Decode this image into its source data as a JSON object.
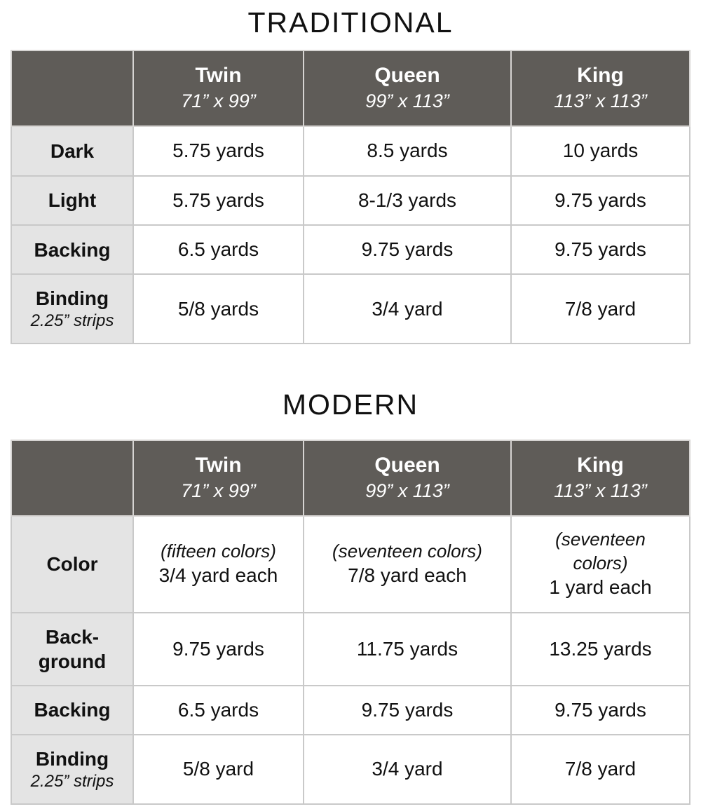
{
  "colors": {
    "header_bg": "#5f5c58",
    "header_text": "#ffffff",
    "label_bg": "#e4e4e4",
    "border": "#c9c9c9",
    "text": "#111111",
    "page_bg": "#ffffff"
  },
  "tables": [
    {
      "title": "TRADITIONAL",
      "columns": [
        {
          "name": "Twin",
          "size": "71” x 99”"
        },
        {
          "name": "Queen",
          "size": "99” x 113”"
        },
        {
          "name": "King",
          "size": "113” x 113”"
        }
      ],
      "rows": [
        {
          "label": "Dark",
          "sub": "",
          "cells": [
            {
              "value": "5.75 yards"
            },
            {
              "value": "8.5 yards"
            },
            {
              "value": "10 yards"
            }
          ]
        },
        {
          "label": "Light",
          "sub": "",
          "cells": [
            {
              "value": "5.75 yards"
            },
            {
              "value": "8-1/3 yards"
            },
            {
              "value": "9.75 yards"
            }
          ]
        },
        {
          "label": "Backing",
          "sub": "",
          "cells": [
            {
              "value": "6.5 yards"
            },
            {
              "value": "9.75 yards"
            },
            {
              "value": "9.75 yards"
            }
          ]
        },
        {
          "label": "Binding",
          "sub": "2.25” strips",
          "cells": [
            {
              "value": "5/8 yards"
            },
            {
              "value": "3/4 yard"
            },
            {
              "value": "7/8 yard"
            }
          ]
        }
      ]
    },
    {
      "title": "MODERN",
      "columns": [
        {
          "name": "Twin",
          "size": "71” x 99”"
        },
        {
          "name": "Queen",
          "size": "99” x 113”"
        },
        {
          "name": "King",
          "size": "113” x 113”"
        }
      ],
      "rows": [
        {
          "label": "Color",
          "sub": "",
          "cells": [
            {
              "note": "(fifteen colors)",
              "value": "3/4 yard each"
            },
            {
              "note": "(seventeen colors)",
              "value": "7/8 yard each"
            },
            {
              "note": "(seventeen\ncolors)",
              "value": "1 yard each"
            }
          ]
        },
        {
          "label": "Back-\nground",
          "sub": "",
          "cells": [
            {
              "value": "9.75 yards"
            },
            {
              "value": "11.75 yards"
            },
            {
              "value": "13.25 yards"
            }
          ]
        },
        {
          "label": "Backing",
          "sub": "",
          "cells": [
            {
              "value": "6.5 yards"
            },
            {
              "value": "9.75 yards"
            },
            {
              "value": "9.75 yards"
            }
          ]
        },
        {
          "label": "Binding",
          "sub": "2.25” strips",
          "cells": [
            {
              "value": "5/8 yard"
            },
            {
              "value": "3/4 yard"
            },
            {
              "value": "7/8 yard"
            }
          ]
        }
      ]
    }
  ]
}
